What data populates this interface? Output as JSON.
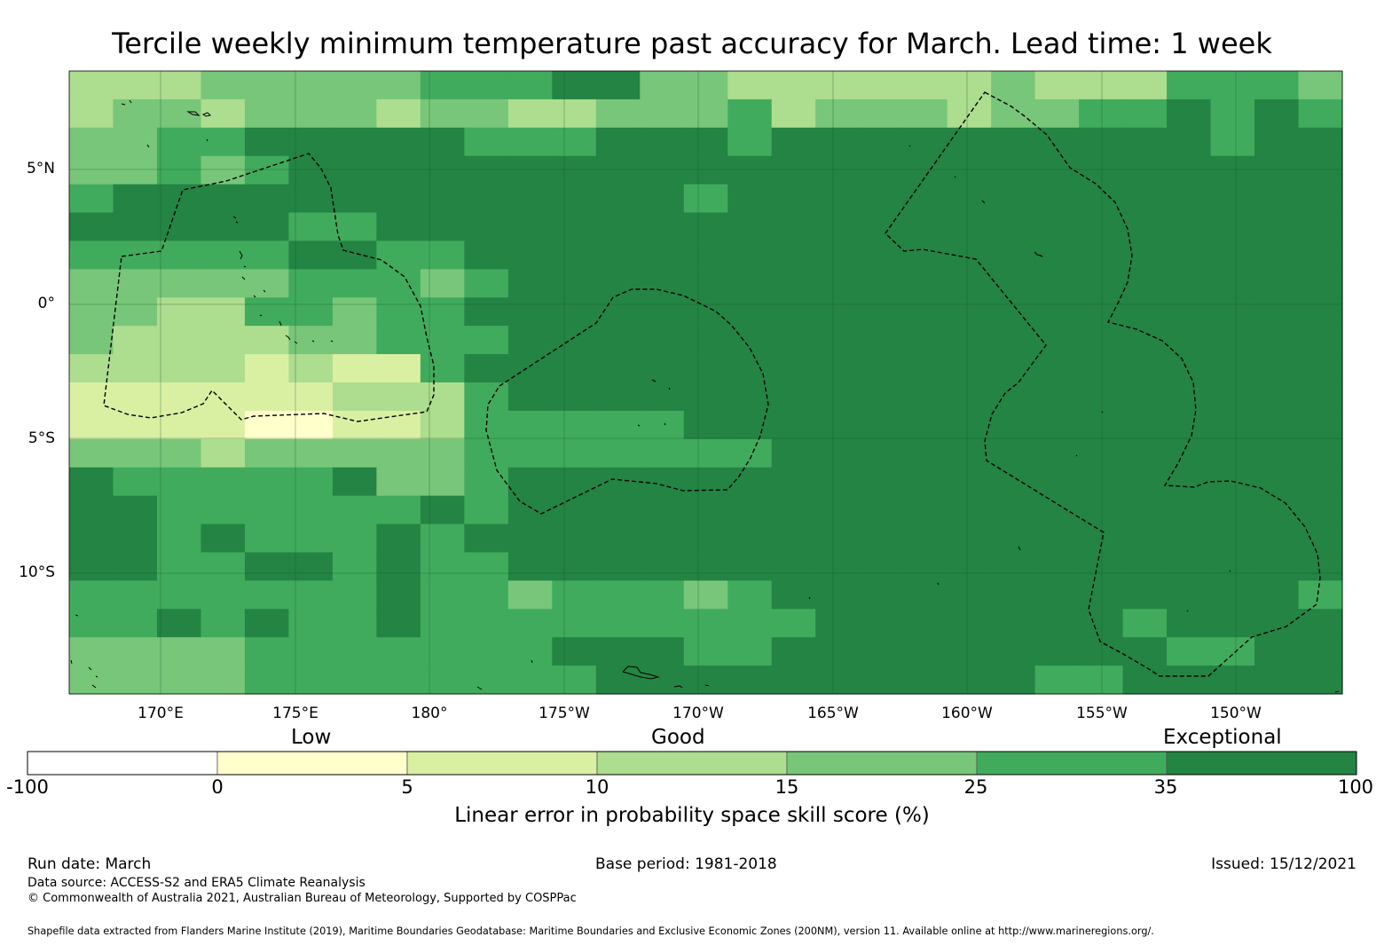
{
  "title": "Tercile weekly minimum temperature past accuracy for March. Lead time: 1 week",
  "map": {
    "lat_labels": [
      "5°N",
      "0°",
      "5°S",
      "10°S"
    ],
    "lon_labels": [
      "170°E",
      "175°E",
      "180°",
      "175°W",
      "170°W",
      "165°W",
      "160°W",
      "155°W",
      "150°W"
    ],
    "grid_rows": [
      "33344444555664433333343335554",
      "34434443443344453444344556565",
      "44556666655566656666666666566",
      "44545666666666666666666666666",
      "56666666666666566666666666666",
      "66666556666666666666666666666",
      "55555665566666666666666666666",
      "44444555456666666666666666666",
      "44335545566666666666666666666",
      "43333445556666666666666666666",
      "33332322566666666666666666666",
      "22222233356666666666666666666",
      "22221122355555666666666666666",
      "44434444455555556666666666666",
      "65555564456666666666666666666",
      "66555555656666666666666666666",
      "66565556566666666666666666666",
      "66556656556666666666666666666",
      "55555556554555456666666666665",
      "55656556555555555666666656666",
      "44445555555666556666666665566",
      "44445555555566666666665566666"
    ]
  },
  "colorbar": {
    "category_labels": [
      "Low",
      "Good",
      "Exceptional"
    ],
    "ticks": [
      "-100",
      "0",
      "5",
      "10",
      "15",
      "25",
      "35",
      "100"
    ],
    "colors": [
      "#ffffff",
      "#ffffcc",
      "#d9f0a3",
      "#addd8e",
      "#78c679",
      "#41ab5d",
      "#238443"
    ],
    "title": "Linear error in probability space skill score (%)"
  },
  "footer": {
    "run_date": "Run date: March",
    "base_period": "Base period: 1981-2018",
    "issued": "Issued: 15/12/2021",
    "data_source": "Data source: ACCESS-S2 and ERA5 Climate Reanalysis",
    "copyright": "© Commonwealth of Australia 2021, Australian Bureau of Meteorology, Supported by COSPPac",
    "shapefile": "Shapefile data extracted from Flanders Marine Institute (2019), Maritime Boundaries Geodatabase: Maritime Boundaries and Exclusive Economic Zones (200NM), version 11. Available online at http://www.marineregions.org/."
  }
}
